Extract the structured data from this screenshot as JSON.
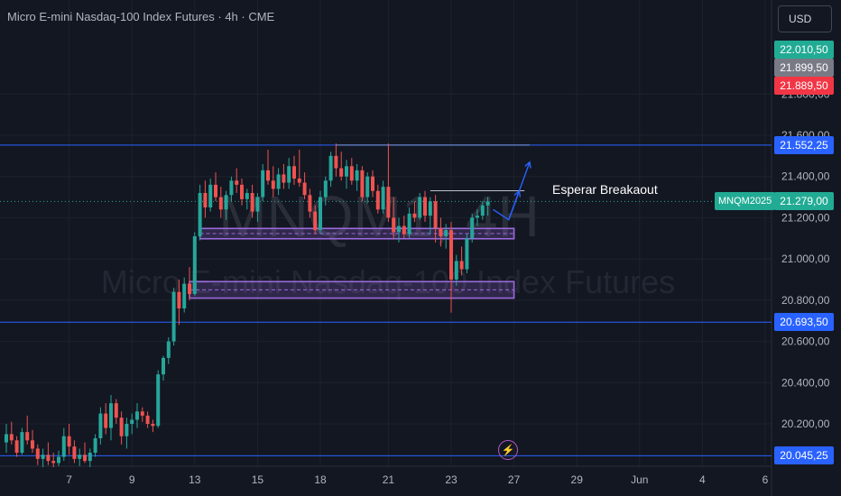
{
  "header": {
    "title": "Micro E-mini Nasdaq-100 Index Futures · 4h · CME",
    "currency": "USD"
  },
  "watermark": {
    "line1": "MNQM1, 4H",
    "line2": "Micro E-mini Nasdaq-100 Index Futures"
  },
  "annotation": {
    "text": "Esperar Breakaout"
  },
  "indicator": {
    "icon": "lightning-icon",
    "glyph": "⚡"
  },
  "colors": {
    "background": "#131722",
    "up": "#26a69a",
    "down": "#ef5350",
    "levelLine": "#2962ff",
    "zone": "#9c6ade",
    "axisText": "#b2b5be"
  },
  "price_labels": [
    {
      "text": "22.010,50",
      "color": "#22ab94",
      "value": 22010.5
    },
    {
      "text": "21.899,50",
      "color": "#787b86",
      "value": 21899.5
    },
    {
      "text": "21.889,50",
      "color": "#f23645",
      "value": 21889.5
    },
    {
      "text": "21.552,25",
      "color": "#2962ff",
      "value": 21552.25
    },
    {
      "text": "21.279,00",
      "color": "#22ab94",
      "value": 21279
    },
    {
      "text": "20.693,50",
      "color": "#2962ff",
      "value": 20693.5
    },
    {
      "text": "20.045,25",
      "color": "#2962ff",
      "value": 20045.25
    }
  ],
  "symbol_label": "MNQM2025",
  "chart_data": {
    "type": "candlestick",
    "title": "Micro E-mini Nasdaq-100 Index Futures · 4h · CME",
    "ylim": [
      19980,
      22180
    ],
    "y_ticks": [
      {
        "value": 21800,
        "label": "21.800,00"
      },
      {
        "value": 21600,
        "label": "21.600,00"
      },
      {
        "value": 21400,
        "label": "21.400,00"
      },
      {
        "value": 21200,
        "label": "21.200,00"
      },
      {
        "value": 21000,
        "label": "21.000,00"
      },
      {
        "value": 20800,
        "label": "20.800,00"
      },
      {
        "value": 20600,
        "label": "20.600,00"
      },
      {
        "value": 20400,
        "label": "20.400,00"
      },
      {
        "value": 20200,
        "label": "20.200,00"
      }
    ],
    "x_ticks": [
      {
        "label": "7",
        "index": 12
      },
      {
        "label": "9",
        "index": 24
      },
      {
        "label": "13",
        "index": 36
      },
      {
        "label": "15",
        "index": 48
      },
      {
        "label": "18",
        "index": 60
      },
      {
        "label": "21",
        "index": 73
      },
      {
        "label": "23",
        "index": 85
      },
      {
        "label": "27",
        "index": 97
      },
      {
        "label": "29",
        "index": 109
      },
      {
        "label": "Jun",
        "index": 121
      },
      {
        "label": "4",
        "index": 133
      },
      {
        "label": "6",
        "index": 145
      }
    ],
    "levels": [
      {
        "value": 21552.25,
        "style": "full"
      },
      {
        "value": 20693.5,
        "style": "full"
      },
      {
        "value": 20045.25,
        "style": "full"
      },
      {
        "value": 21279,
        "style": "dotted"
      }
    ],
    "segments": [
      {
        "from_index": 63,
        "to_index": 100,
        "value": 21552.25
      },
      {
        "from_index": 81,
        "to_index": 99,
        "value": 21331
      }
    ],
    "zones": [
      {
        "from_index": 37,
        "to_index": 97,
        "top": 21148,
        "bottom": 21098
      },
      {
        "from_index": 35,
        "to_index": 97,
        "top": 20890,
        "bottom": 20810
      }
    ],
    "arrows": [
      {
        "points": [
          [
            93,
            21240
          ],
          [
            96,
            21190
          ],
          [
            98,
            21330
          ]
        ]
      },
      {
        "points": [
          [
            96,
            21190
          ],
          [
            100,
            21470
          ]
        ]
      }
    ],
    "candles": [
      {
        "o": 20110,
        "h": 20200,
        "l": 20060,
        "c": 20150
      },
      {
        "o": 20150,
        "h": 20210,
        "l": 20100,
        "c": 20120
      },
      {
        "o": 20120,
        "h": 20140,
        "l": 20040,
        "c": 20060
      },
      {
        "o": 20060,
        "h": 20180,
        "l": 20050,
        "c": 20160
      },
      {
        "o": 20160,
        "h": 20240,
        "l": 20100,
        "c": 20120
      },
      {
        "o": 20120,
        "h": 20170,
        "l": 20060,
        "c": 20080
      },
      {
        "o": 20080,
        "h": 20100,
        "l": 20000,
        "c": 20030
      },
      {
        "o": 20030,
        "h": 20080,
        "l": 19990,
        "c": 20050
      },
      {
        "o": 20050,
        "h": 20110,
        "l": 20000,
        "c": 20020
      },
      {
        "o": 20020,
        "h": 20060,
        "l": 19990,
        "c": 20010
      },
      {
        "o": 20010,
        "h": 20070,
        "l": 19995,
        "c": 20040
      },
      {
        "o": 20040,
        "h": 20180,
        "l": 20020,
        "c": 20140
      },
      {
        "o": 20140,
        "h": 20200,
        "l": 20050,
        "c": 20090
      },
      {
        "o": 20090,
        "h": 20120,
        "l": 20010,
        "c": 20030
      },
      {
        "o": 20030,
        "h": 20080,
        "l": 19995,
        "c": 20050
      },
      {
        "o": 20050,
        "h": 20110,
        "l": 20010,
        "c": 20020
      },
      {
        "o": 20020,
        "h": 20080,
        "l": 19990,
        "c": 20060
      },
      {
        "o": 20060,
        "h": 20150,
        "l": 20040,
        "c": 20130
      },
      {
        "o": 20130,
        "h": 20280,
        "l": 20100,
        "c": 20250
      },
      {
        "o": 20250,
        "h": 20300,
        "l": 20150,
        "c": 20180
      },
      {
        "o": 20180,
        "h": 20340,
        "l": 20120,
        "c": 20300
      },
      {
        "o": 20300,
        "h": 20320,
        "l": 20200,
        "c": 20230
      },
      {
        "o": 20230,
        "h": 20260,
        "l": 20100,
        "c": 20140
      },
      {
        "o": 20140,
        "h": 20230,
        "l": 20080,
        "c": 20200
      },
      {
        "o": 20200,
        "h": 20250,
        "l": 20150,
        "c": 20220
      },
      {
        "o": 20220,
        "h": 20300,
        "l": 20180,
        "c": 20260
      },
      {
        "o": 20260,
        "h": 20280,
        "l": 20210,
        "c": 20240
      },
      {
        "o": 20240,
        "h": 20260,
        "l": 20180,
        "c": 20200
      },
      {
        "o": 20200,
        "h": 20220,
        "l": 20160,
        "c": 20190
      },
      {
        "o": 20190,
        "h": 20460,
        "l": 20180,
        "c": 20440
      },
      {
        "o": 20440,
        "h": 20530,
        "l": 20410,
        "c": 20520
      },
      {
        "o": 20520,
        "h": 20620,
        "l": 20490,
        "c": 20600
      },
      {
        "o": 20600,
        "h": 20860,
        "l": 20580,
        "c": 20840
      },
      {
        "o": 20840,
        "h": 20900,
        "l": 20680,
        "c": 20760
      },
      {
        "o": 20760,
        "h": 20910,
        "l": 20740,
        "c": 20880
      },
      {
        "o": 20880,
        "h": 20960,
        "l": 20800,
        "c": 20830
      },
      {
        "o": 20830,
        "h": 21130,
        "l": 20820,
        "c": 21110
      },
      {
        "o": 21110,
        "h": 21360,
        "l": 21090,
        "c": 21320
      },
      {
        "o": 21320,
        "h": 21380,
        "l": 21200,
        "c": 21250
      },
      {
        "o": 21250,
        "h": 21390,
        "l": 21230,
        "c": 21360
      },
      {
        "o": 21360,
        "h": 21420,
        "l": 21280,
        "c": 21300
      },
      {
        "o": 21300,
        "h": 21350,
        "l": 21200,
        "c": 21240
      },
      {
        "o": 21240,
        "h": 21330,
        "l": 21190,
        "c": 21310
      },
      {
        "o": 21310,
        "h": 21400,
        "l": 21280,
        "c": 21380
      },
      {
        "o": 21380,
        "h": 21440,
        "l": 21320,
        "c": 21360
      },
      {
        "o": 21360,
        "h": 21390,
        "l": 21260,
        "c": 21290
      },
      {
        "o": 21290,
        "h": 21340,
        "l": 21240,
        "c": 21320
      },
      {
        "o": 21320,
        "h": 21360,
        "l": 21200,
        "c": 21230
      },
      {
        "o": 21230,
        "h": 21320,
        "l": 21180,
        "c": 21300
      },
      {
        "o": 21300,
        "h": 21460,
        "l": 21280,
        "c": 21430
      },
      {
        "o": 21430,
        "h": 21530,
        "l": 21360,
        "c": 21380
      },
      {
        "o": 21380,
        "h": 21450,
        "l": 21300,
        "c": 21340
      },
      {
        "o": 21340,
        "h": 21440,
        "l": 21310,
        "c": 21410
      },
      {
        "o": 21410,
        "h": 21460,
        "l": 21340,
        "c": 21370
      },
      {
        "o": 21370,
        "h": 21490,
        "l": 21340,
        "c": 21450
      },
      {
        "o": 21450,
        "h": 21500,
        "l": 21360,
        "c": 21390
      },
      {
        "o": 21390,
        "h": 21530,
        "l": 21350,
        "c": 21370
      },
      {
        "o": 21370,
        "h": 21420,
        "l": 21290,
        "c": 21310
      },
      {
        "o": 21310,
        "h": 21340,
        "l": 21200,
        "c": 21230
      },
      {
        "o": 21230,
        "h": 21260,
        "l": 21120,
        "c": 21140
      },
      {
        "o": 21140,
        "h": 21330,
        "l": 21120,
        "c": 21300
      },
      {
        "o": 21300,
        "h": 21400,
        "l": 21260,
        "c": 21380
      },
      {
        "o": 21380,
        "h": 21520,
        "l": 21350,
        "c": 21500
      },
      {
        "o": 21500,
        "h": 21560,
        "l": 21400,
        "c": 21440
      },
      {
        "o": 21440,
        "h": 21520,
        "l": 21380,
        "c": 21400
      },
      {
        "o": 21400,
        "h": 21480,
        "l": 21340,
        "c": 21450
      },
      {
        "o": 21450,
        "h": 21490,
        "l": 21360,
        "c": 21380
      },
      {
        "o": 21380,
        "h": 21460,
        "l": 21330,
        "c": 21430
      },
      {
        "o": 21430,
        "h": 21450,
        "l": 21280,
        "c": 21300
      },
      {
        "o": 21300,
        "h": 21420,
        "l": 21270,
        "c": 21400
      },
      {
        "o": 21400,
        "h": 21430,
        "l": 21300,
        "c": 21330
      },
      {
        "o": 21330,
        "h": 21360,
        "l": 21220,
        "c": 21240
      },
      {
        "o": 21240,
        "h": 21380,
        "l": 21220,
        "c": 21350
      },
      {
        "o": 21350,
        "h": 21560,
        "l": 21180,
        "c": 21200
      },
      {
        "o": 21200,
        "h": 21300,
        "l": 21100,
        "c": 21130
      },
      {
        "o": 21130,
        "h": 21200,
        "l": 21080,
        "c": 21160
      },
      {
        "o": 21160,
        "h": 21210,
        "l": 21100,
        "c": 21120
      },
      {
        "o": 21120,
        "h": 21250,
        "l": 21100,
        "c": 21220
      },
      {
        "o": 21220,
        "h": 21280,
        "l": 21180,
        "c": 21200
      },
      {
        "o": 21200,
        "h": 21320,
        "l": 21190,
        "c": 21300
      },
      {
        "o": 21300,
        "h": 21330,
        "l": 21180,
        "c": 21210
      },
      {
        "o": 21210,
        "h": 21300,
        "l": 21120,
        "c": 21280
      },
      {
        "o": 21280,
        "h": 21310,
        "l": 21080,
        "c": 21150
      },
      {
        "o": 21150,
        "h": 21200,
        "l": 21060,
        "c": 21110
      },
      {
        "o": 21110,
        "h": 21170,
        "l": 21050,
        "c": 21140
      },
      {
        "o": 21140,
        "h": 21180,
        "l": 20740,
        "c": 20900
      },
      {
        "o": 20900,
        "h": 21020,
        "l": 20870,
        "c": 20990
      },
      {
        "o": 20990,
        "h": 21060,
        "l": 20920,
        "c": 20950
      },
      {
        "o": 20950,
        "h": 21120,
        "l": 20930,
        "c": 21100
      },
      {
        "o": 21100,
        "h": 21220,
        "l": 21080,
        "c": 21200
      },
      {
        "o": 21200,
        "h": 21240,
        "l": 21160,
        "c": 21210
      },
      {
        "o": 21210,
        "h": 21280,
        "l": 21190,
        "c": 21260
      },
      {
        "o": 21260,
        "h": 21300,
        "l": 21210,
        "c": 21279
      }
    ]
  }
}
